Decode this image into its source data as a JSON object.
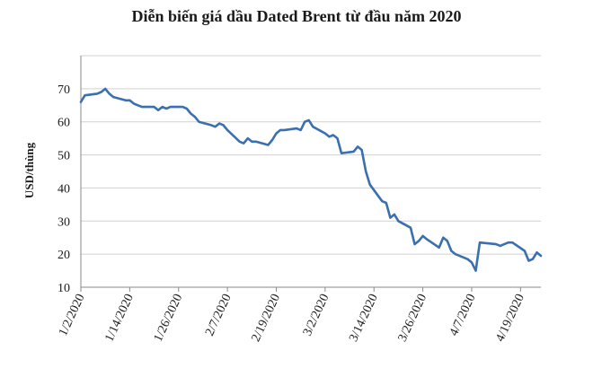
{
  "chart_data": {
    "type": "line",
    "title": "Diễn biến giá dầu Dated Brent từ đầu năm 2020",
    "xlabel": "",
    "ylabel": "USD/thùng",
    "ylim": [
      10,
      80
    ],
    "y_ticks": [
      10,
      20,
      30,
      40,
      50,
      60,
      70
    ],
    "x_tick_labels": [
      "1/2/2020",
      "1/14/2020",
      "1/26/2020",
      "2/7/2020",
      "2/19/2020",
      "3/2/2020",
      "3/14/2020",
      "3/26/2020",
      "4/7/2020",
      "4/19/2020"
    ],
    "grid": true,
    "legend": "none",
    "color": "#3a6fb0",
    "series": [
      {
        "x": [
          "2020-01-02",
          "2020-01-03",
          "2020-01-06",
          "2020-01-07",
          "2020-01-08",
          "2020-01-09",
          "2020-01-10",
          "2020-01-13",
          "2020-01-14",
          "2020-01-15",
          "2020-01-16",
          "2020-01-17",
          "2020-01-20",
          "2020-01-21",
          "2020-01-22",
          "2020-01-23",
          "2020-01-24",
          "2020-01-27",
          "2020-01-28",
          "2020-01-29",
          "2020-01-30",
          "2020-01-31",
          "2020-02-03",
          "2020-02-04",
          "2020-02-05",
          "2020-02-06",
          "2020-02-07",
          "2020-02-10",
          "2020-02-11",
          "2020-02-12",
          "2020-02-13",
          "2020-02-14",
          "2020-02-17",
          "2020-02-18",
          "2020-02-19",
          "2020-02-20",
          "2020-02-21",
          "2020-02-24",
          "2020-02-25",
          "2020-02-26",
          "2020-02-27",
          "2020-02-28",
          "2020-03-02",
          "2020-03-03",
          "2020-03-04",
          "2020-03-05",
          "2020-03-06",
          "2020-03-09",
          "2020-03-10",
          "2020-03-11",
          "2020-03-12",
          "2020-03-13",
          "2020-03-16",
          "2020-03-17",
          "2020-03-18",
          "2020-03-19",
          "2020-03-20",
          "2020-03-23",
          "2020-03-24",
          "2020-03-25",
          "2020-03-26",
          "2020-03-27",
          "2020-03-30",
          "2020-03-31",
          "2020-04-01",
          "2020-04-02",
          "2020-04-03",
          "2020-04-06",
          "2020-04-07",
          "2020-04-08",
          "2020-04-09",
          "2020-04-13",
          "2020-04-14",
          "2020-04-15",
          "2020-04-16",
          "2020-04-17",
          "2020-04-20",
          "2020-04-21",
          "2020-04-22",
          "2020-04-23",
          "2020-04-24"
        ],
        "y": [
          66.0,
          68.0,
          68.5,
          69.0,
          70.0,
          68.5,
          67.5,
          66.5,
          66.5,
          65.5,
          65.0,
          64.5,
          64.5,
          63.5,
          64.5,
          64.0,
          64.5,
          64.5,
          64.0,
          62.5,
          61.5,
          60.0,
          59.0,
          58.5,
          59.5,
          59.0,
          57.5,
          54.0,
          53.5,
          55.0,
          54.0,
          54.0,
          53.0,
          54.5,
          56.5,
          57.5,
          57.5,
          58.0,
          57.5,
          60.0,
          60.5,
          58.5,
          56.5,
          55.5,
          56.0,
          55.0,
          50.5,
          51.0,
          52.5,
          51.5,
          45.0,
          41.0,
          36.0,
          35.5,
          31.0,
          32.0,
          30.0,
          28.0,
          23.0,
          24.0,
          25.5,
          24.5,
          22.0,
          25.0,
          24.0,
          21.0,
          20.0,
          18.5,
          17.5,
          15.0,
          23.5,
          23.0,
          22.5,
          23.0,
          23.5,
          23.5,
          21.0,
          18.0,
          18.5,
          20.5,
          19.5
        ]
      }
    ]
  }
}
